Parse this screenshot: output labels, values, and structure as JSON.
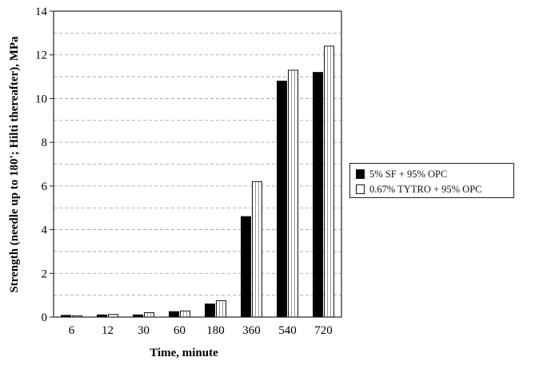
{
  "chart_data": {
    "type": "bar",
    "xlabel": "Time, minute",
    "ylabel": "Strength (needle up to 180'; Hilti thereafter), MPa",
    "categories": [
      "6",
      "12",
      "30",
      "60",
      "180",
      "360",
      "540",
      "720"
    ],
    "ylim": [
      0,
      14
    ],
    "yticks": [
      "0",
      "2",
      "4",
      "6",
      "8",
      "10",
      "12",
      "14"
    ],
    "grid": "dashed horizontal",
    "legend_position": "right",
    "series": [
      {
        "name": "5% SF + 95% OPC",
        "color": "#000000",
        "values": [
          0.08,
          0.1,
          0.1,
          0.25,
          0.6,
          4.6,
          10.8,
          11.2
        ]
      },
      {
        "name": "0.67% TYTRO + 95% OPC",
        "color": "#ffffff",
        "values": [
          0.06,
          0.12,
          0.2,
          0.28,
          0.75,
          6.2,
          11.3,
          12.4
        ]
      }
    ]
  }
}
